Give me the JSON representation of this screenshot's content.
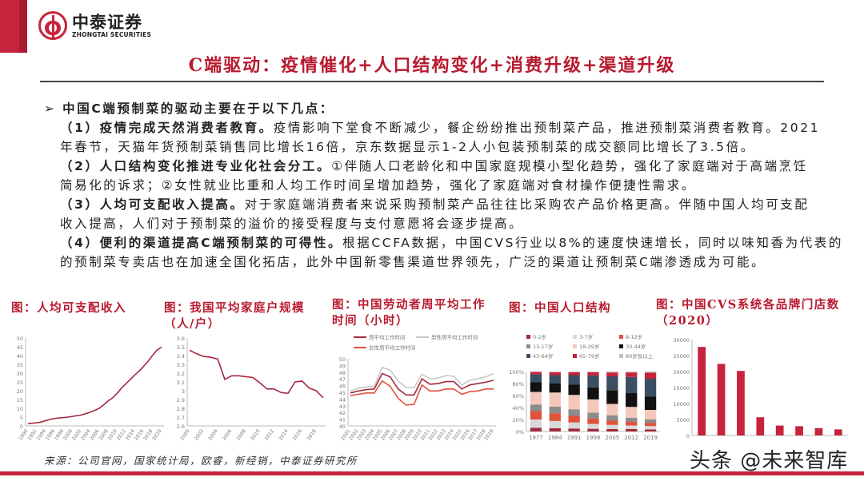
{
  "header": {
    "logo_cn": "中泰证券",
    "logo_en": "ZHONGTAI SECURITIES",
    "title": "C端驱动：疫情催化+人口结构变化+消费升级+渠道升级"
  },
  "body": {
    "bullet": "中国C端预制菜的驱动主要在于以下几点：",
    "points": [
      {
        "bold": "（1）疫情完成天然消费者教育。",
        "line1": "疫情影响下堂食不断减少，餐企纷纷推出预制菜产品，推进预制菜消费者教育。2021",
        "line2": "年春节，天猫年货预制菜销售同比增长16倍，京东数据显示1-2人小包装预制菜的成交额同比增长了3.5倍。"
      },
      {
        "bold": "（2）人口结构变化推进专业化社会分工。",
        "line1": "①伴随人口老龄化和中国家庭规模小型化趋势，强化了家庭端对于高端烹饪",
        "line2": "简易化的诉求；②女性就业比重和人均工作时间呈增加趋势，强化了家庭端对食材操作便捷性需求。"
      },
      {
        "bold": "（3）人均可支配收入提高。",
        "line1": "对于家庭端消费者来说采购预制菜产品往往比采购农产品价格更高。伴随中国人均可支配",
        "line2": "收入提高，人们对于预制菜的溢价的接受程度与支付意愿将会逐步提高。"
      },
      {
        "bold": "（4）便利的渠道提高C端预制菜的可得性。",
        "line1": "根据CCFA数据，中国CVS行业以8%的速度快速增长，同时以味知香为代表的",
        "line2": "的预制菜专卖店也在加速全国化拓店，此外中国新零售渠道世界领先，广泛的渠道让预制菜C端渗透成为可能。"
      }
    ]
  },
  "source": "来源：公司官网，国家统计局，欧睿，新经销，中泰证券研究所",
  "watermark": "头条 @未来智库",
  "colors": {
    "brand_red": "#c8233c",
    "title_red": "#b81a2e",
    "line": "#a3293f"
  },
  "chart_data": [
    {
      "type": "line",
      "title": "图：人均可支配收入",
      "ylim": [
        0,
        50
      ],
      "yticks": [
        0,
        5,
        10,
        15,
        20,
        25,
        30,
        35,
        40,
        45,
        50
      ],
      "x": [
        1990,
        1991,
        1992,
        1993,
        1994,
        1995,
        1996,
        1997,
        1998,
        1999,
        2000,
        2001,
        2002,
        2003,
        2004,
        2005,
        2006,
        2007,
        2008,
        2009,
        2010,
        2011,
        2012,
        2013,
        2014,
        2015,
        2016,
        2017,
        2018,
        2019,
        2020
      ],
      "xticks": [
        "1990",
        "1992",
        "1994",
        "1996",
        "1998",
        "2000",
        "2002",
        "2004",
        "2006",
        "2008",
        "2010",
        "2012",
        "2014",
        "2016",
        "2018",
        "2020"
      ],
      "series": [
        {
          "values": [
            1.3,
            1.5,
            1.8,
            2.2,
            3.0,
            3.7,
            4.2,
            4.5,
            4.7,
            5.0,
            5.4,
            5.8,
            6.2,
            7.0,
            7.8,
            8.8,
            10.0,
            12.0,
            14.2,
            15.9,
            18.5,
            21.5,
            24.0,
            26.5,
            29.0,
            31.3,
            34.0,
            36.8,
            40.2,
            43.2,
            44.8
          ],
          "color": "#a3293f"
        }
      ]
    },
    {
      "type": "line",
      "title": "图：我国平均家庭户规模（人/户）",
      "ylim": [
        2.6,
        3.6
      ],
      "yticks": [
        2.6,
        2.7,
        2.8,
        2.9,
        3.0,
        3.1,
        3.2,
        3.3,
        3.4,
        3.5,
        3.6
      ],
      "x": [
        2000,
        2001,
        2002,
        2003,
        2004,
        2005,
        2006,
        2007,
        2008,
        2009,
        2010,
        2011,
        2012,
        2013,
        2014,
        2015,
        2016,
        2017,
        2018,
        2019
      ],
      "xticks": [
        "2000",
        "2002",
        "2004",
        "2006",
        "2008",
        "2010",
        "2012",
        "2014",
        "2016",
        "2018"
      ],
      "series": [
        {
          "values": [
            3.46,
            3.42,
            3.39,
            3.38,
            3.36,
            3.13,
            3.17,
            3.17,
            3.16,
            3.15,
            3.09,
            3.02,
            3.02,
            2.98,
            2.97,
            3.1,
            3.11,
            3.03,
            3.0,
            2.92
          ],
          "color": "#a3293f"
        }
      ]
    },
    {
      "type": "line",
      "title": "图：中国劳动者周平均工作时间（小时）",
      "ylim": [
        40,
        50
      ],
      "yticks": [
        40,
        41,
        42,
        43,
        44,
        45,
        46,
        47,
        48,
        49,
        50
      ],
      "x": [
        2001,
        2002,
        2003,
        2004,
        2005,
        2006,
        2007,
        2008,
        2009,
        2010,
        2011,
        2012,
        2013,
        2014,
        2015,
        2016,
        2017,
        2018,
        2019
      ],
      "xticks": [
        "2001",
        "2002",
        "2003",
        "2004",
        "2005",
        "2006",
        "2007",
        "2008",
        "2009",
        "2010",
        "2011",
        "2012",
        "2013",
        "2014",
        "2015",
        "2016",
        "2017",
        "2018",
        "2019"
      ],
      "series": [
        {
          "name": "周平均工作时间",
          "color": "#a3293f",
          "values": [
            44.9,
            45.2,
            45.4,
            45.5,
            47.8,
            47.3,
            45.5,
            44.6,
            44.6,
            47.0,
            46.2,
            46.3,
            46.6,
            46.6,
            45.5,
            46.1,
            46.3,
            46.5,
            46.8
          ]
        },
        {
          "name": "男性周平均工作时间",
          "color": "#c8c8c8",
          "values": [
            45.2,
            45.6,
            45.8,
            45.9,
            48.7,
            48.3,
            46.7,
            45.7,
            45.7,
            47.7,
            47.0,
            47.1,
            47.5,
            47.4,
            46.1,
            46.8,
            47.0,
            47.3,
            47.8
          ]
        },
        {
          "name": "女性周平均工作时间",
          "color": "#e0523a",
          "values": [
            44.5,
            44.7,
            44.9,
            44.9,
            46.7,
            45.9,
            44.1,
            43.1,
            43.2,
            46.1,
            45.2,
            45.2,
            45.5,
            45.5,
            44.7,
            45.1,
            45.2,
            45.5,
            45.5
          ]
        }
      ]
    },
    {
      "type": "bar",
      "stacked": true,
      "title": "图：中国人口结构",
      "ylim": [
        0,
        100
      ],
      "yticks": [
        "0%",
        "20%",
        "40%",
        "60%",
        "80%",
        "100%"
      ],
      "categories": [
        "1977",
        "1984",
        "1991",
        "1998",
        "2005",
        "2012",
        "2019"
      ],
      "series": [
        {
          "name": "0-2岁",
          "color": "#a3293f",
          "values": [
            6,
            5.5,
            5,
            4.5,
            4,
            4,
            3.5
          ]
        },
        {
          "name": "3-7岁",
          "color": "#d9d9d9",
          "values": [
            14,
            12,
            10,
            8,
            7,
            6,
            5.5
          ]
        },
        {
          "name": "8-12岁",
          "color": "#e0523a",
          "values": [
            14,
            13,
            11,
            9,
            7,
            6,
            5.5
          ]
        },
        {
          "name": "13-17岁",
          "color": "#8c8c8c",
          "values": [
            11,
            11,
            11,
            10,
            9,
            7,
            5.5
          ]
        },
        {
          "name": "18-29岁",
          "color": "#f4c7bd",
          "values": [
            21,
            23.5,
            24,
            22,
            19,
            18,
            16
          ]
        },
        {
          "name": "30-44岁",
          "color": "#111111",
          "values": [
            16,
            15,
            17,
            20,
            23,
            23,
            22
          ]
        },
        {
          "name": "45-64岁",
          "color": "#3b4f63",
          "values": [
            13.5,
            14,
            16,
            20,
            23,
            27,
            30
          ]
        },
        {
          "name": "65-79岁",
          "color": "#c8233c",
          "values": [
            4,
            5,
            5,
            5.5,
            6.5,
            7.5,
            10
          ]
        },
        {
          "name": "80岁及以上",
          "color": "#bfbfbf",
          "values": [
            0.5,
            1,
            1,
            1,
            1.5,
            1.5,
            2
          ]
        }
      ]
    },
    {
      "type": "bar",
      "title": "图：中国CVS系统各品牌门店数（2020）",
      "ylim": [
        0,
        30000
      ],
      "yticks": [
        0,
        5000,
        10000,
        15000,
        20000,
        25000,
        30000
      ],
      "values": [
        27700,
        22400,
        20200,
        5700,
        3100,
        2900,
        2300,
        1900
      ],
      "color": "#c8233c"
    }
  ]
}
